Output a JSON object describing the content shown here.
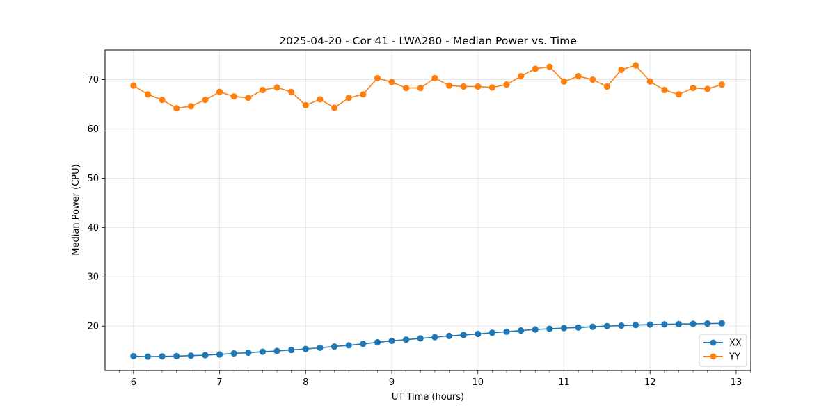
{
  "chart_data": {
    "type": "line",
    "title": "2025-04-20 - Cor 41 - LWA280 - Median Power vs. Time",
    "xlabel": "UT Time (hours)",
    "ylabel": "Median Power (CPU)",
    "xlim": [
      5.67,
      13.17
    ],
    "ylim": [
      11,
      76
    ],
    "xticks": [
      6,
      7,
      8,
      9,
      10,
      11,
      12,
      13
    ],
    "xtick_labels": [
      "6",
      "7",
      "8",
      "9",
      "10",
      "11",
      "12",
      "13"
    ],
    "yticks": [
      20,
      30,
      40,
      50,
      60,
      70
    ],
    "ytick_labels": [
      "20",
      "30",
      "40",
      "50",
      "60",
      "70"
    ],
    "grid": true,
    "legend_position": "lower-right",
    "x": [
      6.0,
      6.1667,
      6.3333,
      6.5,
      6.6667,
      6.8333,
      7.0,
      7.1667,
      7.3333,
      7.5,
      7.6667,
      7.8333,
      8.0,
      8.1667,
      8.3333,
      8.5,
      8.6667,
      8.8333,
      9.0,
      9.1667,
      9.3333,
      9.5,
      9.6667,
      9.8333,
      10.0,
      10.1667,
      10.3333,
      10.5,
      10.6667,
      10.8333,
      11.0,
      11.1667,
      11.3333,
      11.5,
      11.6667,
      11.8333,
      12.0,
      12.1667,
      12.3333,
      12.5,
      12.6667,
      12.8333
    ],
    "series": [
      {
        "name": "XX",
        "color": "#1f77b4",
        "values": [
          13.9,
          13.8,
          13.85,
          13.9,
          14.0,
          14.1,
          14.25,
          14.45,
          14.6,
          14.8,
          14.95,
          15.15,
          15.35,
          15.6,
          15.85,
          16.1,
          16.4,
          16.7,
          17.0,
          17.25,
          17.5,
          17.75,
          18.0,
          18.2,
          18.4,
          18.65,
          18.85,
          19.1,
          19.3,
          19.45,
          19.6,
          19.7,
          19.85,
          20.0,
          20.1,
          20.2,
          20.3,
          20.35,
          20.4,
          20.45,
          20.5,
          20.55
        ]
      },
      {
        "name": "YY",
        "color": "#ff7f0e",
        "values": [
          68.8,
          67.0,
          65.9,
          64.2,
          64.6,
          65.9,
          67.5,
          66.6,
          66.3,
          67.9,
          68.4,
          67.5,
          64.8,
          66.0,
          64.3,
          66.3,
          67.0,
          70.3,
          69.5,
          68.3,
          68.3,
          70.3,
          68.8,
          68.6,
          68.6,
          68.4,
          69.0,
          70.7,
          72.2,
          72.6,
          69.6,
          70.7,
          70.0,
          68.6,
          72.0,
          72.9,
          69.6,
          67.9,
          67.0,
          68.3,
          68.1,
          69.0
        ]
      }
    ]
  }
}
